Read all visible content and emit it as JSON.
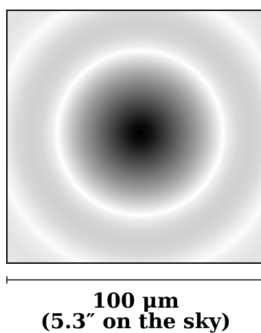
{
  "scale_bar": {
    "length_label": "100 μm",
    "sky_label": "(5.3″ on the sky)"
  },
  "colors": {
    "background": "#ffffff",
    "core": "#000000",
    "frame": "#000000"
  }
}
